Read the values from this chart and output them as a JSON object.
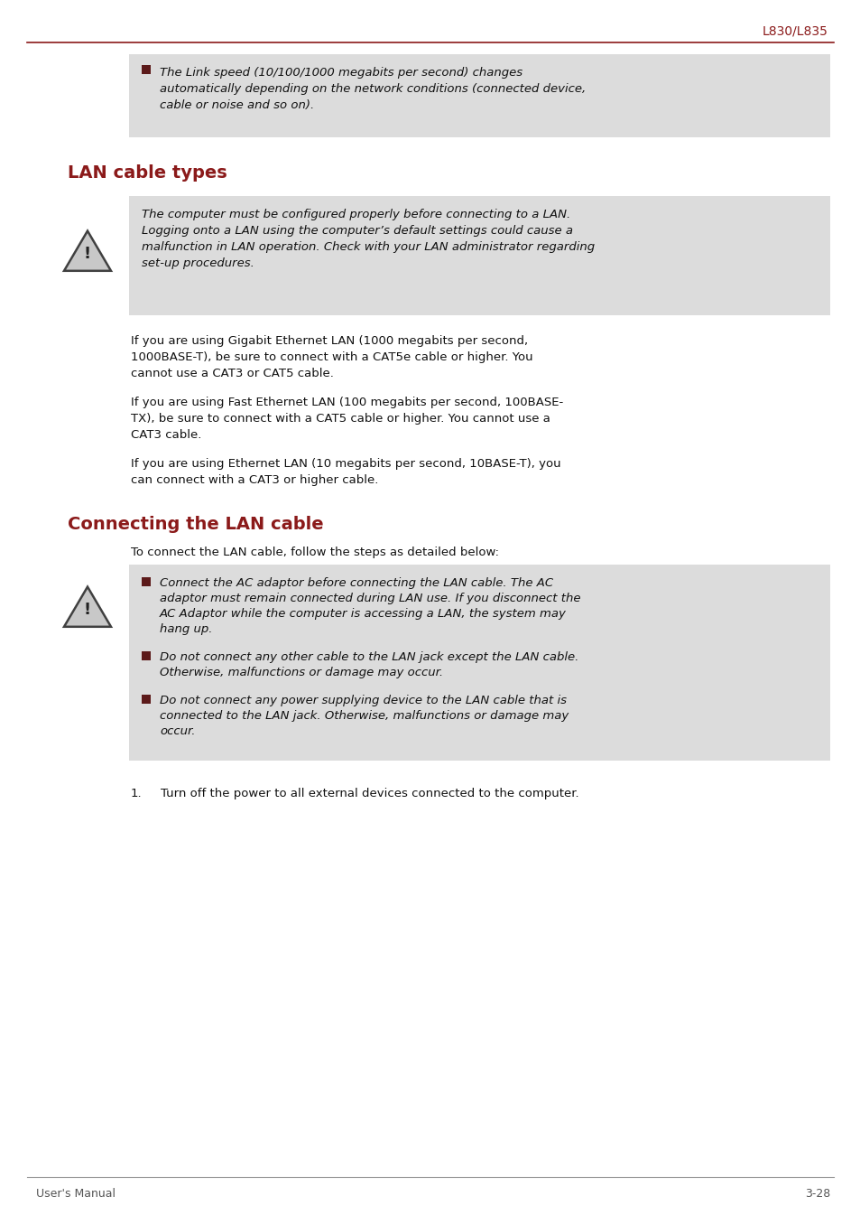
{
  "page_header": "L830/L835",
  "header_color": "#8B1A1A",
  "bg_color": "#FFFFFF",
  "gray_box_color": "#DCDCDC",
  "section1_title": "LAN cable types",
  "section2_title": "Connecting the LAN cable",
  "header_line_color": "#8B1A1A",
  "footer_left": "User's Manual",
  "footer_right": "3-28",
  "bullet_color": "#5C1A1A",
  "top_box_text_lines": [
    "The Link speed (10/100/1000 megabits per second) changes",
    "automatically depending on the network conditions (connected device,",
    "cable or noise and so on)."
  ],
  "warning_box1_text_lines": [
    "The computer must be configured properly before connecting to a LAN.",
    "Logging onto a LAN using the computer’s default settings could cause a",
    "malfunction in LAN operation. Check with your LAN administrator regarding",
    "set-up procedures."
  ],
  "para1_lines": [
    "If you are using Gigabit Ethernet LAN (1000 megabits per second,",
    "1000BASE-T), be sure to connect with a CAT5e cable or higher. You",
    "cannot use a CAT3 or CAT5 cable."
  ],
  "para2_lines": [
    "If you are using Fast Ethernet LAN (100 megabits per second, 100BASE-",
    "TX), be sure to connect with a CAT5 cable or higher. You cannot use a",
    "CAT3 cable."
  ],
  "para3_lines": [
    "If you are using Ethernet LAN (10 megabits per second, 10BASE-T), you",
    "can connect with a CAT3 or higher cable."
  ],
  "connect_intro": "To connect the LAN cable, follow the steps as detailed below:",
  "warning_box2_items": [
    [
      "Connect the AC adaptor before connecting the LAN cable. The AC",
      "adaptor must remain connected during LAN use. If you disconnect the",
      "AC Adaptor while the computer is accessing a LAN, the system may",
      "hang up."
    ],
    [
      "Do not connect any other cable to the LAN jack except the LAN cable.",
      "Otherwise, malfunctions or damage may occur."
    ],
    [
      "Do not connect any power supplying device to the LAN cable that is",
      "connected to the LAN jack. Otherwise, malfunctions or damage may",
      "occur."
    ]
  ],
  "step1": "Turn off the power to all external devices connected to the computer."
}
